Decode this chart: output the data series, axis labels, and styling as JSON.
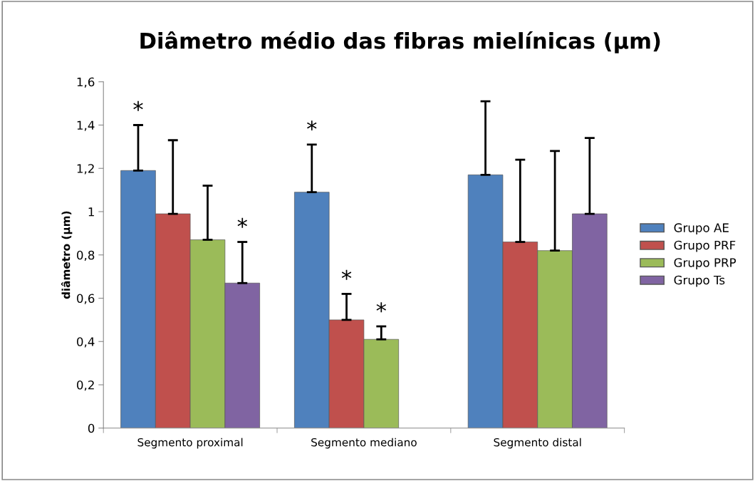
{
  "chart_data": {
    "type": "bar",
    "title": "Diâmetro médio das fibras mielínicas (µm)",
    "ylabel": "diâmetro (µm)",
    "categories": [
      "Segmento proximal",
      "Segmento mediano",
      "Segmento distal"
    ],
    "series": [
      {
        "name": "Grupo AE",
        "color": "#4f81bd",
        "values": [
          1.19,
          1.09,
          1.17
        ],
        "errors": [
          [
            1.19,
            1.4
          ],
          [
            1.09,
            1.31
          ],
          [
            1.17,
            1.51
          ]
        ]
      },
      {
        "name": "Grupo PRF",
        "color": "#c0504d",
        "values": [
          0.99,
          0.5,
          0.86
        ],
        "errors": [
          [
            0.99,
            1.33
          ],
          [
            0.5,
            0.62
          ],
          [
            0.86,
            1.24
          ]
        ]
      },
      {
        "name": "Grupo PRP",
        "color": "#9bbb59",
        "values": [
          0.87,
          0.41,
          0.82
        ],
        "errors": [
          [
            0.87,
            1.12
          ],
          [
            0.41,
            0.47
          ],
          [
            0.82,
            1.28
          ]
        ]
      },
      {
        "name": "Grupo Ts",
        "color": "#8064a2",
        "values": [
          0.67,
          null,
          0.99
        ],
        "errors": [
          [
            0.67,
            0.86
          ],
          null,
          [
            0.99,
            1.34
          ]
        ]
      }
    ],
    "ylim": [
      0,
      1.6
    ],
    "yticks": [
      {
        "value": 0,
        "label": "0"
      },
      {
        "value": 0.2,
        "label": "0,2"
      },
      {
        "value": 0.4,
        "label": "0,4"
      },
      {
        "value": 0.6,
        "label": "0,6"
      },
      {
        "value": 0.8,
        "label": "0,8"
      },
      {
        "value": 1,
        "label": "1"
      },
      {
        "value": 1.2,
        "label": "1,2"
      },
      {
        "value": 1.4,
        "label": "1,4"
      },
      {
        "value": 1.6,
        "label": "1,6"
      }
    ],
    "annotations": [
      "*",
      "*",
      "*",
      "*",
      "*"
    ],
    "grid": false,
    "legend": "right"
  }
}
